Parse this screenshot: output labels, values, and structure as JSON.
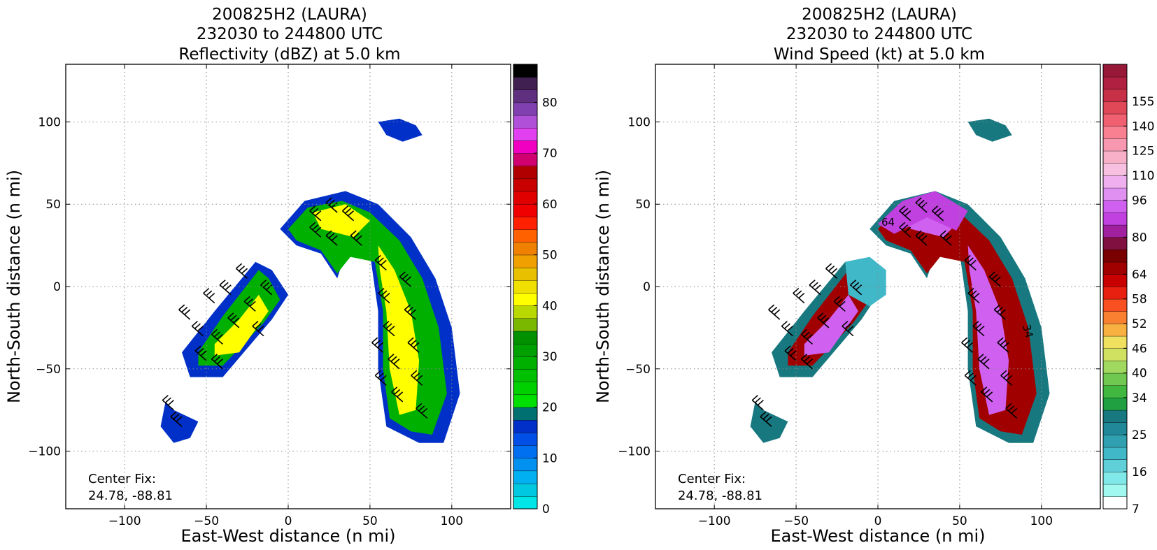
{
  "figure": {
    "background": "#ffffff"
  },
  "chart_data": [
    {
      "type": "heatmap",
      "title": [
        "200825H2 (LAURA)",
        "232030 to 244800 UTC",
        "Reflectivity (dBZ) at 5.0 km"
      ],
      "xlabel": "East-West distance (n mi)",
      "ylabel": "North-South distance (n mi)",
      "xlim": [
        -136,
        136
      ],
      "ylim": [
        -135,
        135
      ],
      "xticks": [
        -100,
        -50,
        0,
        50,
        100
      ],
      "yticks": [
        -100,
        -50,
        0,
        50,
        100
      ],
      "grid": true,
      "annotation": [
        "Center Fix:",
        "24.78, -88.81"
      ],
      "colorbar": {
        "levels": [
          0,
          80
        ],
        "tick_labels": [
          "0",
          "10",
          "20",
          "30",
          "40",
          "50",
          "60",
          "70",
          "80"
        ],
        "colors": [
          "#00e5e5",
          "#00c8e0",
          "#00b0f0",
          "#0090f0",
          "#0070f0",
          "#0050e8",
          "#0030c8",
          "#007070",
          "#00e000",
          "#00d000",
          "#00c000",
          "#00b000",
          "#00a000",
          "#009000",
          "#7ab800",
          "#b8d800",
          "#ffff00",
          "#f0e000",
          "#e8c000",
          "#f0a000",
          "#f08000",
          "#ff6000",
          "#ff2000",
          "#f00000",
          "#e00000",
          "#c80000",
          "#b00000",
          "#d00070",
          "#f000c0",
          "#e040f0",
          "#b050d8",
          "#8040b0",
          "#603080",
          "#402050",
          "#000000"
        ]
      }
    },
    {
      "type": "heatmap",
      "title": [
        "200825H2 (LAURA)",
        "232030 to 244800 UTC",
        "Wind Speed (kt) at 5.0 km"
      ],
      "xlabel": "East-West distance (n mi)",
      "ylabel": "North-South distance (n mi)",
      "xlim": [
        -136,
        136
      ],
      "ylim": [
        -135,
        135
      ],
      "xticks": [
        -100,
        -50,
        0,
        50,
        100
      ],
      "yticks": [
        -100,
        -50,
        0,
        50,
        100
      ],
      "grid": true,
      "contour_labels": [
        "64",
        "34"
      ],
      "annotation": [
        "Center Fix:",
        "24.78, -88.81"
      ],
      "colorbar": {
        "tick_labels": [
          "7",
          "16",
          "25",
          "34",
          "40",
          "46",
          "52",
          "58",
          "64",
          "80",
          "96",
          "110",
          "125",
          "140",
          "155"
        ],
        "colors": [
          "#ffffff",
          "#a0f8f0",
          "#80e8e8",
          "#60d0d8",
          "#40b8c8",
          "#30a0b0",
          "#208898",
          "#187880",
          "#20a040",
          "#40b840",
          "#70c850",
          "#a0d860",
          "#d0e060",
          "#f0e060",
          "#f8b040",
          "#f88030",
          "#f85020",
          "#e82010",
          "#c80000",
          "#a00000",
          "#780000",
          "#801040",
          "#a020a0",
          "#c040e0",
          "#d060f0",
          "#e090f0",
          "#f0b0f0",
          "#f8c0e0",
          "#f8b0c8",
          "#f898b0",
          "#f88090",
          "#f06070",
          "#e04858",
          "#c83048",
          "#b02040",
          "#981838"
        ]
      }
    }
  ]
}
